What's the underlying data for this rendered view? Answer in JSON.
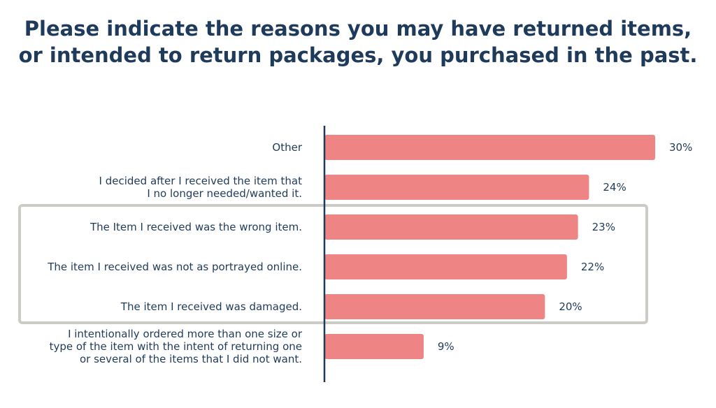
{
  "chart_data": {
    "type": "bar",
    "orientation": "horizontal",
    "title_lines": [
      "Please indicate the reasons you may have returned items,",
      "or intended to return packages, you purchased in the past."
    ],
    "categories": [
      [
        "Other"
      ],
      [
        "I decided after I received the item that",
        "I no longer needed/wanted it."
      ],
      [
        "The Item I received was the wrong item."
      ],
      [
        "The item I received was not as portrayed online."
      ],
      [
        "The item I received was damaged."
      ],
      [
        "I intentionally ordered more than one size or",
        "type of the item with the intent of returning one",
        "or several of the items that I did not want."
      ]
    ],
    "values": [
      30,
      24,
      23,
      22,
      20,
      9
    ],
    "value_labels": [
      "30%",
      "24%",
      "23%",
      "22%",
      "20%",
      "9%"
    ],
    "unit": "%",
    "xlim": [
      0,
      30
    ],
    "highlighted_categories": [
      2,
      3,
      4
    ],
    "grid": false,
    "legend": "none",
    "colors": {
      "bar": "#ee8483",
      "axis": "#1f3b5c",
      "text": "#1f3b5c",
      "highlight_border": "#cccbc6"
    }
  }
}
